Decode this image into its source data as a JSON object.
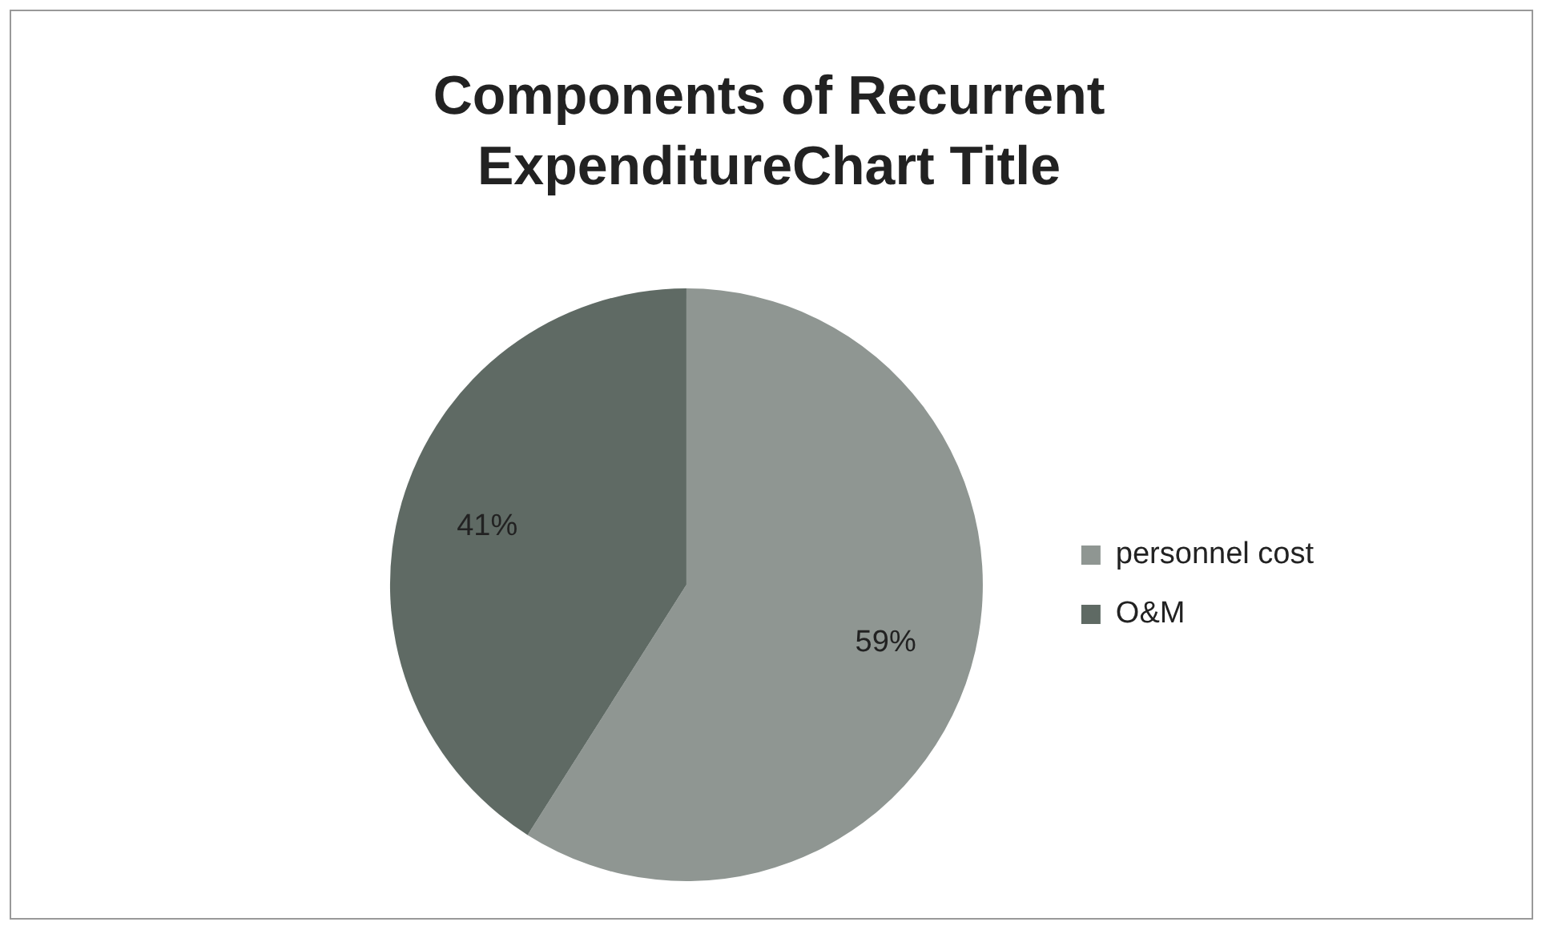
{
  "chart_data": {
    "type": "pie",
    "title": "Components of Recurrent ExpenditureChart Title",
    "categories": [
      "personnel cost",
      "O&M"
    ],
    "values": [
      59,
      41
    ],
    "value_labels": [
      "59%",
      "41%"
    ],
    "colors": [
      "#8f9692",
      "#5f6a64"
    ],
    "legend": "right"
  }
}
